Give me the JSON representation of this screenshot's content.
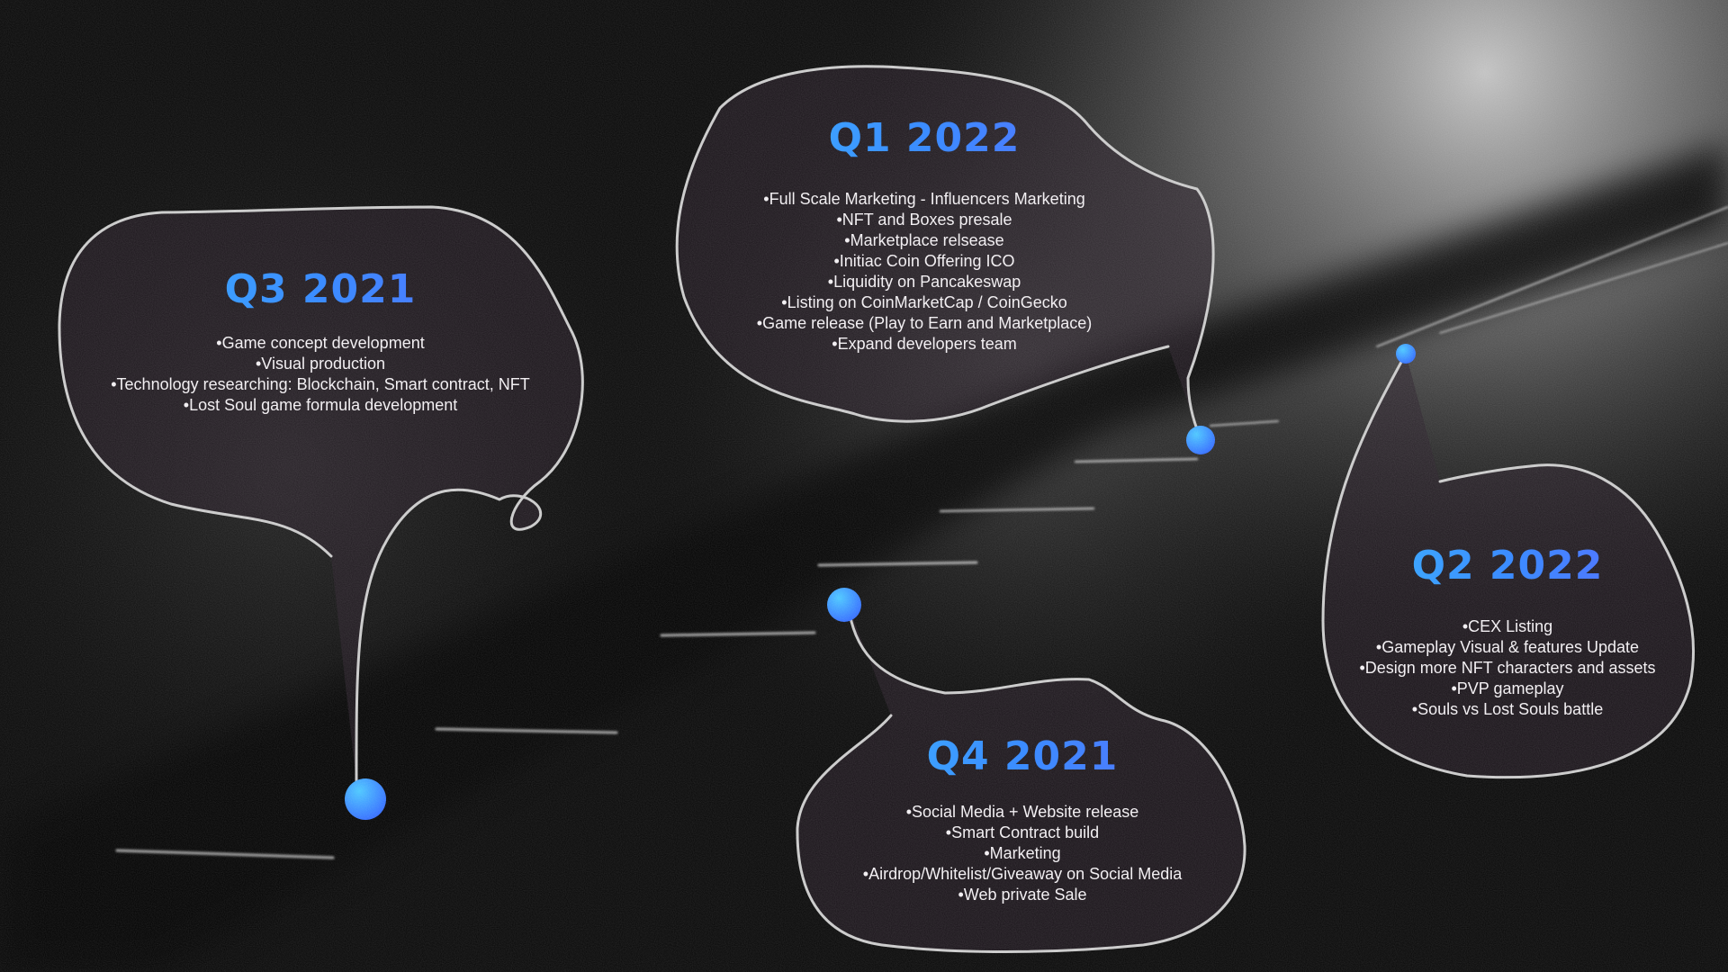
{
  "milestones": [
    {
      "quarter": "Q3 2021",
      "items": [
        "Game concept development",
        "Visual production",
        "Technology researching: Blockchain, Smart contract, NFT",
        "Lost Soul game formula development"
      ]
    },
    {
      "quarter": "Q4 2021",
      "items": [
        "Social Media + Website release",
        "Smart Contract build",
        "Marketing",
        "Airdrop/Whitelist/Giveaway on Social Media",
        "Web private Sale"
      ]
    },
    {
      "quarter": "Q1 2022",
      "items": [
        "Full Scale Marketing - Influencers Marketing",
        "NFT and Boxes presale",
        "Marketplace relsease",
        "Initiac Coin Offering ICO",
        "Liquidity on Pancakeswap",
        "Listing on CoinMarketCap / CoinGecko",
        "Game release (Play to Earn and Marketplace)",
        "Expand developers team"
      ]
    },
    {
      "quarter": "Q2 2022",
      "items": [
        "CEX Listing",
        "Gameplay Visual & features Update",
        "Design more NFT characters and assets",
        "PVP gameplay",
        "Souls vs Lost Souls battle"
      ]
    }
  ],
  "colors": {
    "background": "#060606",
    "title_gradient_start": "#3fb6ff",
    "title_gradient_end": "#5b6dff",
    "node": "#3a8cff",
    "bubble_fill": "#2a1f2a",
    "bubble_stroke": "#bdbdbd"
  }
}
